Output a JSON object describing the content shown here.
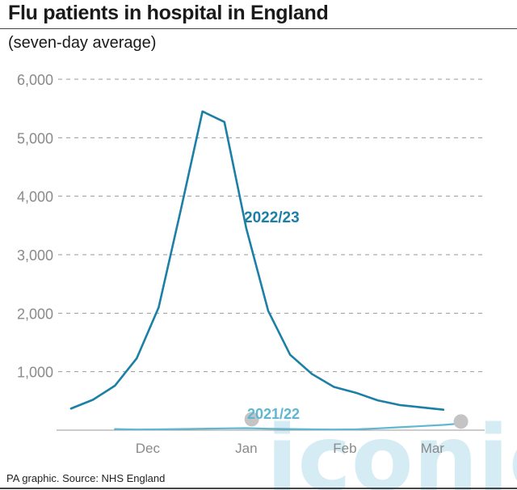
{
  "header": {
    "title": "Flu patients in hospital in England",
    "subtitle": "(seven-day average)"
  },
  "footer": {
    "source": "PA graphic. Source: NHS England"
  },
  "watermark": {
    "text": "iconic"
  },
  "colors": {
    "series_2022_23": "#1b7fa6",
    "series_2021_22": "#5fb7d1",
    "axis_text": "#8a8a8a",
    "grid": "#9a9a9a",
    "marker": "#c4c4c4",
    "watermark": "#c7e6f2"
  },
  "chart_data": {
    "type": "line",
    "title": "Flu patients in hospital in England",
    "subtitle": "(seven-day average)",
    "xlabel": "",
    "ylabel": "",
    "ylim": [
      0,
      6000
    ],
    "yticks": [
      1000,
      2000,
      3000,
      4000,
      5000,
      6000
    ],
    "ytick_labels": [
      "1,000",
      "2,000",
      "3,000",
      "4,000",
      "5,000",
      "6,000"
    ],
    "xticks": [
      {
        "label": "Dec",
        "week": 3.5
      },
      {
        "label": "Jan",
        "week": 8.0
      },
      {
        "label": "Feb",
        "week": 12.5
      },
      {
        "label": "Mar",
        "week": 16.5
      }
    ],
    "xlim": [
      0,
      18
    ],
    "grid": true,
    "series": [
      {
        "name": "2022/23",
        "week": [
          0,
          1,
          2,
          3,
          4,
          5,
          6,
          7,
          8,
          9,
          10,
          11,
          12,
          13,
          14,
          15,
          16,
          17
        ],
        "values": [
          370,
          520,
          760,
          1230,
          2100,
          3750,
          5450,
          5270,
          3450,
          2040,
          1290,
          960,
          740,
          640,
          510,
          430,
          390,
          350
        ]
      },
      {
        "name": "2021/22",
        "week": [
          2,
          3,
          4,
          5,
          6,
          7,
          8,
          9,
          10,
          11,
          12,
          13,
          14,
          15,
          16,
          17,
          18
        ],
        "values": [
          20,
          10,
          15,
          20,
          25,
          30,
          35,
          25,
          20,
          15,
          10,
          15,
          30,
          50,
          70,
          90,
          120
        ]
      }
    ]
  }
}
